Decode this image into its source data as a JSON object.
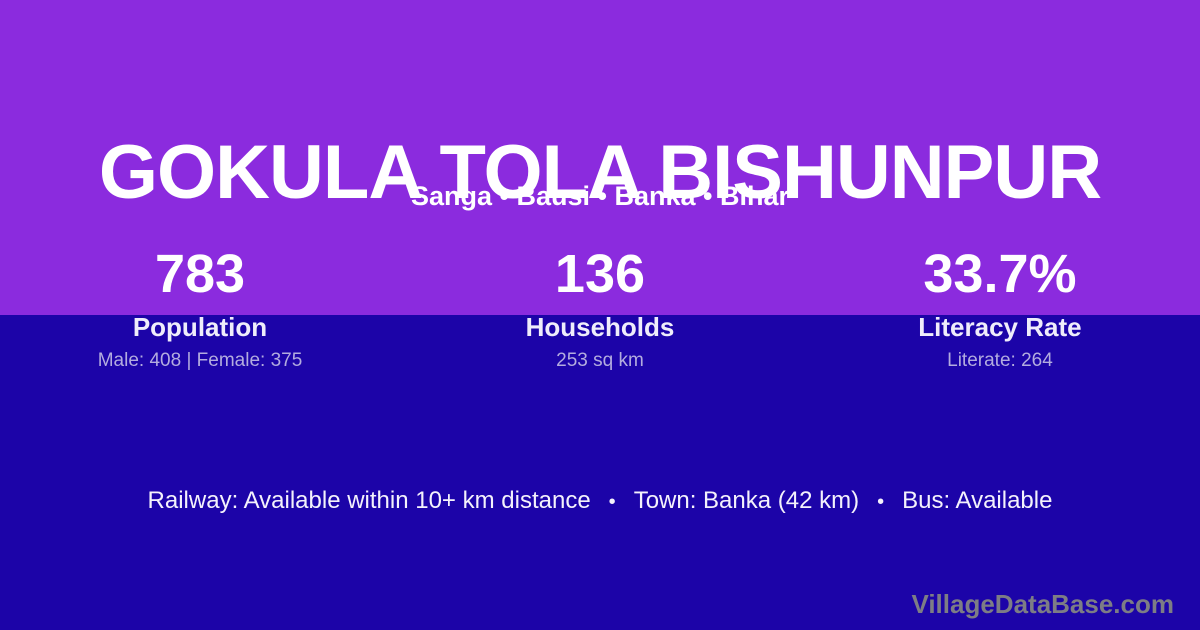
{
  "page": {
    "title": "GOKULA TOLA BISHUNPUR",
    "subtitle": "Sanga • Bausi • Banka • Bihar"
  },
  "stats": [
    {
      "value": "783",
      "label": "Population",
      "detail": "Male: 408 | Female: 375"
    },
    {
      "value": "136",
      "label": "Households",
      "detail": "253 sq km"
    },
    {
      "value": "33.7%",
      "label": "Literacy Rate",
      "detail": "Literate: 264"
    }
  ],
  "footer": {
    "separator": "•",
    "items": [
      "Railway: Available within 10+ km distance",
      "Town: Banka (42 km)",
      "Bus: Available"
    ]
  },
  "watermark": "VillageDataBase.com",
  "colors": {
    "top_bg": "#8B2BDE",
    "bottom_bg": "#1C04A8",
    "text": "#FFFFFF",
    "muted_text": "#B3ACDF",
    "watermark": "#7D7D85"
  }
}
